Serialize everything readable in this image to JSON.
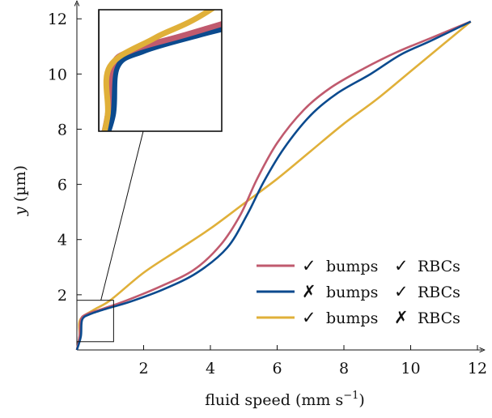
{
  "chart_data": {
    "type": "line",
    "xlabel": "fluid speed (mm s",
    "xlabel_sup": "−1",
    "xlabel_close": ")",
    "ylabel_var": "y",
    "ylabel_unit": " (µm)",
    "xlim": [
      0,
      12
    ],
    "ylim": [
      0,
      12.3
    ],
    "xticks": [
      2,
      4,
      6,
      8,
      10,
      12
    ],
    "yticks": [
      2,
      4,
      6,
      8,
      10,
      12
    ],
    "grid": false,
    "legend_position": "lower-right",
    "series": [
      {
        "bumps": true,
        "rbcs": true,
        "color": "#c05a6e",
        "x": [
          0,
          0.08,
          0.12,
          0.3,
          0.8,
          1.5,
          2.5,
          3.5,
          4.3,
          4.9,
          5.4,
          6.0,
          6.8,
          7.6,
          8.6,
          9.6,
          10.6,
          11.8
        ],
        "y": [
          0,
          0.5,
          1.1,
          1.3,
          1.5,
          1.8,
          2.3,
          2.9,
          3.8,
          4.9,
          6.2,
          7.5,
          8.7,
          9.5,
          10.2,
          10.8,
          11.3,
          11.9
        ]
      },
      {
        "bumps": false,
        "rbcs": true,
        "color": "#0b4a8e",
        "x": [
          0,
          0.12,
          0.16,
          0.4,
          0.9,
          1.6,
          2.6,
          3.6,
          4.5,
          5.1,
          5.6,
          6.2,
          7.0,
          7.8,
          8.8,
          9.7,
          10.6,
          11.8
        ],
        "y": [
          0,
          0.5,
          1.1,
          1.3,
          1.5,
          1.75,
          2.2,
          2.8,
          3.7,
          4.9,
          6.1,
          7.3,
          8.5,
          9.3,
          10.0,
          10.7,
          11.2,
          11.9
        ]
      },
      {
        "bumps": true,
        "rbcs": false,
        "color": "#e0b039",
        "x": [
          0,
          0.08,
          0.1,
          0.5,
          1.0,
          2.0,
          3.0,
          4.0,
          5.0,
          6.0,
          7.0,
          8.0,
          9.0,
          10.0,
          11.0,
          11.8
        ],
        "y": [
          0,
          0.5,
          1.1,
          1.45,
          1.8,
          2.8,
          3.6,
          4.4,
          5.3,
          6.2,
          7.2,
          8.2,
          9.1,
          10.1,
          11.1,
          11.9
        ]
      }
    ],
    "legend": {
      "word_bumps": "bumps",
      "word_rbcs": "RBCs",
      "check_symbol": "✓",
      "cross_symbol": "✗",
      "check_color": "#1aa38f",
      "cross_color": "#d63b2e"
    },
    "inset": {
      "x_range": [
        0,
        1.1
      ],
      "y_range": [
        0.3,
        1.8
      ]
    }
  }
}
